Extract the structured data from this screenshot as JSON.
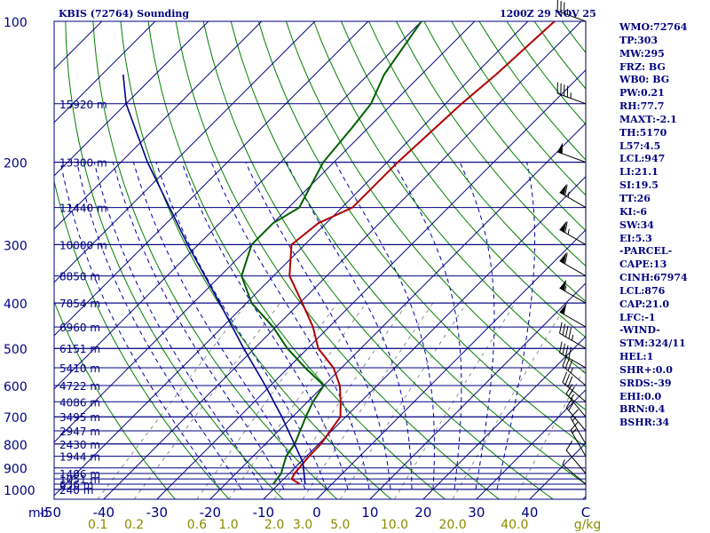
{
  "header": {
    "title": "KBIS (72764) Sounding",
    "timestamp": "1200Z 29 NOV 25"
  },
  "indices": [
    "WMO:72764",
    "TP:303",
    "MW:295",
    "FRZ: BG",
    "WB0: BG",
    "PW:0.21",
    "RH:77.7",
    "MAXT:-2.1",
    "TH:5170",
    "L57:4.5",
    "LCL:947",
    "LI:21.1",
    "SI:19.5",
    "TT:26",
    "KI:-6",
    "SW:34",
    "EI:5.3",
    "-PARCEL-",
    "CAPE:13",
    "CINH:67974",
    "LCL:876",
    "CAP:21.0",
    "LFC:-1",
    "-WIND-",
    "STM:324/11",
    "HEL:1",
    "SHR+:0.0",
    "SRDS:-39",
    "EHI:0.0",
    "BRN:0.4",
    "BSHR:34"
  ],
  "colors": {
    "isobar": "#000080",
    "isotherm": "#000080",
    "dry_adiabat": "#008000",
    "moist_adiabat": "#0000b0",
    "mixing_ratio": "#000000",
    "text": "#000080",
    "temperature": "#b00000",
    "dewpoint": "#006000",
    "parcel": "#00008b",
    "bottom_label": "#8b8b00"
  },
  "chart_data": {
    "type": "skew-t",
    "title": "KBIS (72764) Sounding",
    "xlabel": "C",
    "ylabel": "mb",
    "pressure_levels_mb": [
      1000,
      900,
      800,
      700,
      600,
      500,
      400,
      300,
      200,
      100
    ],
    "pressure_labels": [
      "1000",
      "900",
      "800",
      "700",
      "600",
      "500",
      "400",
      "300",
      "200",
      "100"
    ],
    "height_levels": [
      {
        "mb": 1000,
        "label": "240 m"
      },
      {
        "mb": 975,
        "label": "636 m"
      },
      {
        "mb": 950,
        "label": "1051 m"
      },
      {
        "mb": 925,
        "label": "1486 m"
      },
      {
        "mb": 850,
        "label": "1944 m"
      },
      {
        "mb": 800,
        "label": "2430 m"
      },
      {
        "mb": 750,
        "label": "2947 m"
      },
      {
        "mb": 700,
        "label": "3495 m"
      },
      {
        "mb": 650,
        "label": "4086 m"
      },
      {
        "mb": 600,
        "label": "4722 m"
      },
      {
        "mb": 550,
        "label": "5410 m"
      },
      {
        "mb": 500,
        "label": "6151 m"
      },
      {
        "mb": 450,
        "label": "6960 m"
      },
      {
        "mb": 400,
        "label": "7854 m"
      },
      {
        "mb": 350,
        "label": "8850 m"
      },
      {
        "mb": 300,
        "label": "10000 m"
      },
      {
        "mb": 250,
        "label": "11440 m"
      },
      {
        "mb": 200,
        "label": "13300 m"
      },
      {
        "mb": 150,
        "label": "15920 m"
      }
    ],
    "temp_ticks_c": [
      -50,
      -40,
      -30,
      -20,
      -10,
      0,
      10,
      20,
      30,
      40
    ],
    "mixing_ratio_labels": [
      "0.1",
      "0.2",
      "0.6",
      "1.0",
      "2.0",
      "3.0",
      "5.0",
      "10.0",
      "20.0",
      "40.0"
    ],
    "mixing_ratio_unit": "g/kg",
    "series": [
      {
        "name": "temperature",
        "points": [
          {
            "mb": 975,
            "c": -6.0
          },
          {
            "mb": 950,
            "c": -8.5
          },
          {
            "mb": 925,
            "c": -9.0
          },
          {
            "mb": 850,
            "c": -9.5
          },
          {
            "mb": 800,
            "c": -9.6
          },
          {
            "mb": 700,
            "c": -11.0
          },
          {
            "mb": 650,
            "c": -13.8
          },
          {
            "mb": 600,
            "c": -17.0
          },
          {
            "mb": 550,
            "c": -21.5
          },
          {
            "mb": 500,
            "c": -28.0
          },
          {
            "mb": 450,
            "c": -33.0
          },
          {
            "mb": 400,
            "c": -39.5
          },
          {
            "mb": 350,
            "c": -47.0
          },
          {
            "mb": 300,
            "c": -52.5
          },
          {
            "mb": 270,
            "c": -51.5
          },
          {
            "mb": 250,
            "c": -48.0
          },
          {
            "mb": 200,
            "c": -48.0
          },
          {
            "mb": 150,
            "c": -47.0
          },
          {
            "mb": 130,
            "c": -46.0
          },
          {
            "mb": 100,
            "c": -45.0
          }
        ]
      },
      {
        "name": "dewpoint",
        "points": [
          {
            "mb": 975,
            "c": -11.0
          },
          {
            "mb": 925,
            "c": -11.5
          },
          {
            "mb": 850,
            "c": -13.8
          },
          {
            "mb": 800,
            "c": -14.5
          },
          {
            "mb": 700,
            "c": -17.5
          },
          {
            "mb": 650,
            "c": -19.0
          },
          {
            "mb": 600,
            "c": -20.0
          },
          {
            "mb": 550,
            "c": -26.8
          },
          {
            "mb": 500,
            "c": -33.8
          },
          {
            "mb": 450,
            "c": -40.5
          },
          {
            "mb": 400,
            "c": -49.0
          },
          {
            "mb": 350,
            "c": -56.0
          },
          {
            "mb": 300,
            "c": -60.0
          },
          {
            "mb": 270,
            "c": -60.0
          },
          {
            "mb": 250,
            "c": -58.0
          },
          {
            "mb": 200,
            "c": -62.0
          },
          {
            "mb": 170,
            "c": -63.0
          },
          {
            "mb": 150,
            "c": -64.0
          },
          {
            "mb": 130,
            "c": -67.0
          },
          {
            "mb": 100,
            "c": -70.0
          }
        ]
      },
      {
        "name": "parcel",
        "points": [
          {
            "mb": 975,
            "c": -5.0
          },
          {
            "mb": 876,
            "c": -9.5
          },
          {
            "mb": 700,
            "c": -22.0
          },
          {
            "mb": 600,
            "c": -31.0
          },
          {
            "mb": 500,
            "c": -42.0
          },
          {
            "mb": 400,
            "c": -55.0
          },
          {
            "mb": 300,
            "c": -72.0
          },
          {
            "mb": 200,
            "c": -95.0
          },
          {
            "mb": 150,
            "c": -110.0
          },
          {
            "mb": 130,
            "c": -116.0
          }
        ]
      }
    ],
    "wind_barbs": [
      {
        "mb": 975,
        "dir": 310,
        "spd": 5
      },
      {
        "mb": 925,
        "dir": 320,
        "spd": 10
      },
      {
        "mb": 850,
        "dir": 330,
        "spd": 15
      },
      {
        "mb": 800,
        "dir": 330,
        "spd": 15
      },
      {
        "mb": 750,
        "dir": 320,
        "spd": 20
      },
      {
        "mb": 700,
        "dir": 320,
        "spd": 25
      },
      {
        "mb": 650,
        "dir": 310,
        "spd": 30
      },
      {
        "mb": 600,
        "dir": 310,
        "spd": 35
      },
      {
        "mb": 550,
        "dir": 300,
        "spd": 40
      },
      {
        "mb": 500,
        "dir": 300,
        "spd": 45
      },
      {
        "mb": 450,
        "dir": 300,
        "spd": 50
      },
      {
        "mb": 400,
        "dir": 300,
        "spd": 55
      },
      {
        "mb": 350,
        "dir": 300,
        "spd": 60
      },
      {
        "mb": 300,
        "dir": 300,
        "spd": 65
      },
      {
        "mb": 250,
        "dir": 300,
        "spd": 65
      },
      {
        "mb": 200,
        "dir": 290,
        "spd": 50
      },
      {
        "mb": 150,
        "dir": 290,
        "spd": 45
      },
      {
        "mb": 100,
        "dir": 290,
        "spd": 35
      }
    ]
  }
}
